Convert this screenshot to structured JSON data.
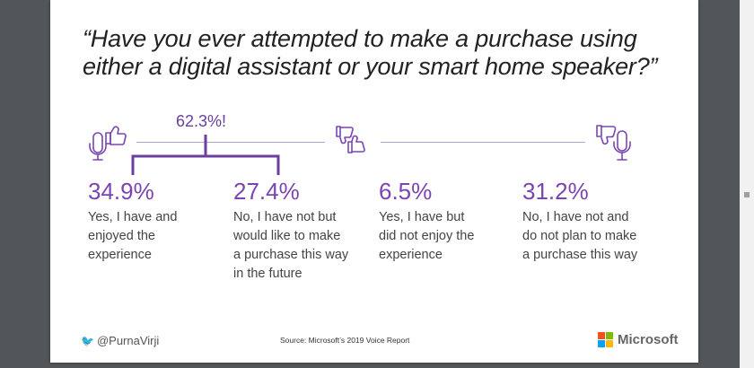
{
  "slide": {
    "title": "“Have you ever attempted to make a purchase using either a digital assistant or your smart home speaker?”",
    "footer_handle": "@PurnaVirji",
    "source": "Source: Microsoft’s 2019 Voice Report",
    "brand": "Microsoft",
    "accent_color": "#7a45b3",
    "brand_colors": [
      "#f25022",
      "#7fba00",
      "#00a4ef",
      "#ffb900"
    ]
  },
  "icons": [
    "thumbs-up-speaker-icon",
    "mixed-thumbs-icon",
    "thumbs-down-speaker-icon",
    "twitter-bird-icon"
  ],
  "chart_data": {
    "type": "table",
    "unit": "%",
    "callout": {
      "label": "62.3%!",
      "value": 62.3,
      "spans": [
        0,
        1
      ]
    },
    "items": [
      {
        "value": 34.9,
        "label": "34.9%",
        "desc": [
          "Yes, I have and",
          "enjoyed the",
          "experience"
        ]
      },
      {
        "value": 27.4,
        "label": "27.4%",
        "desc": [
          "No, I have not but",
          "would like to make",
          "a purchase this way",
          "in the future"
        ]
      },
      {
        "value": 6.5,
        "label": "6.5%",
        "desc": [
          "Yes, I have but",
          "did not enjoy the",
          "experience"
        ]
      },
      {
        "value": 31.2,
        "label": "31.2%",
        "desc": [
          "No, I have not and",
          "do not plan to make",
          "a purchase this way"
        ]
      }
    ]
  }
}
